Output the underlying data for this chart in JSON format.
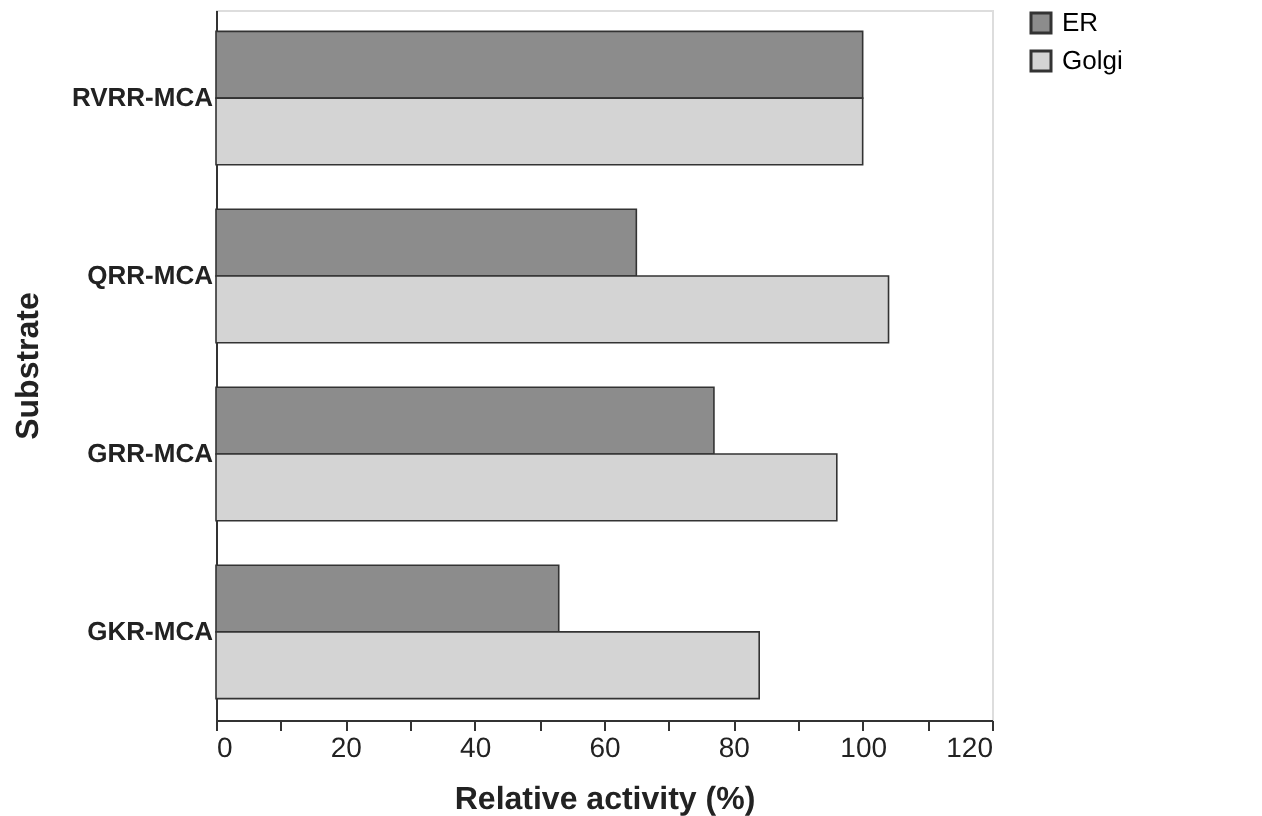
{
  "chart_data": {
    "type": "bar",
    "orientation": "horizontal",
    "xlabel": "Relative activity (%)",
    "ylabel": "Substrate",
    "categories": [
      "RVRR-MCA",
      "QRR-MCA",
      "GRR-MCA",
      "GKR-MCA"
    ],
    "series": [
      {
        "name": "ER",
        "color": "#8c8c8c",
        "values": [
          100,
          65,
          77,
          53
        ]
      },
      {
        "name": "Golgi",
        "color": "#d4d4d4",
        "values": [
          100,
          104,
          96,
          84
        ]
      }
    ],
    "xlim": [
      0,
      120
    ],
    "xticks": [
      0,
      {
        "value": 10,
        "label": null
      },
      20,
      {
        "value": 30,
        "label": null
      },
      40,
      {
        "value": 50,
        "label": null
      },
      60,
      {
        "value": 70,
        "label": null
      },
      80,
      {
        "value": 90,
        "label": null
      },
      100,
      {
        "value": 110,
        "label": null
      },
      120
    ],
    "grid": false,
    "legend": "right"
  }
}
